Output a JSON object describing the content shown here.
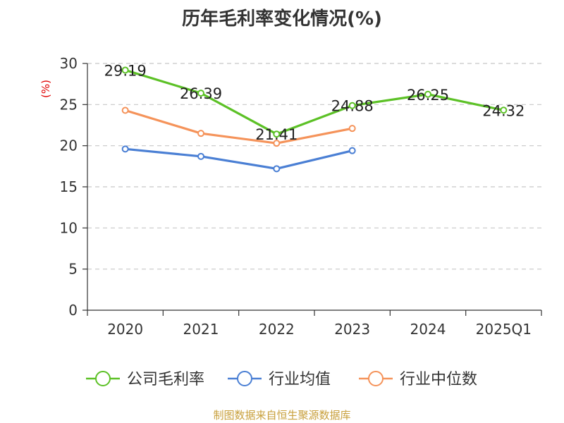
{
  "chart_data": {
    "type": "line",
    "title": "历年毛利率变化情况(%)",
    "ylabel": "(%)",
    "xlabel": "",
    "categories": [
      "2020",
      "2021",
      "2022",
      "2023",
      "2024",
      "2025Q1"
    ],
    "ylim": [
      0,
      30
    ],
    "yticks": [
      0,
      5,
      10,
      15,
      20,
      25,
      30
    ],
    "grid": true,
    "legend_position": "bottom",
    "series": [
      {
        "name": "公司毛利率",
        "color": "#5cc126",
        "values": [
          29.19,
          26.39,
          21.41,
          24.88,
          26.25,
          24.32
        ],
        "labels": [
          "29.19",
          "26.39",
          "21.41",
          "24.88",
          "26.25",
          "24.32"
        ]
      },
      {
        "name": "行业均值",
        "color": "#4a7fd4",
        "values": [
          19.6,
          18.7,
          17.2,
          19.4,
          null,
          null
        ]
      },
      {
        "name": "行业中位数",
        "color": "#f5935a",
        "values": [
          24.3,
          21.5,
          20.3,
          22.1,
          null,
          null
        ]
      }
    ]
  },
  "source": "制图数据来自恒生聚源数据库"
}
